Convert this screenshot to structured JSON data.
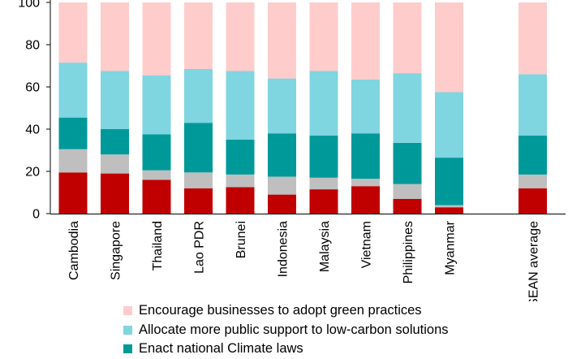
{
  "chart_data": {
    "type": "bar",
    "stacked": true,
    "orientation": "vertical",
    "categories": [
      "Cambodia",
      "Singapore",
      "Thailand",
      "Lao PDR",
      "Brunei",
      "Indonesia",
      "Malaysia",
      "Vietnam",
      "Philippines",
      "Myanmar",
      "ASEAN average"
    ],
    "category_gap_before": "ASEAN average",
    "ylim": [
      0,
      100
    ],
    "yticks": [
      0,
      20,
      40,
      60,
      80,
      100
    ],
    "xlabel": "",
    "ylabel": "",
    "title": "",
    "grid": false,
    "legend_placement": "bottom",
    "series_bottom_to_top": [
      {
        "key": "s1",
        "color": "#c00000",
        "values": [
          19.5,
          19,
          16,
          12,
          12.5,
          9,
          11.5,
          13,
          7,
          3,
          12
        ]
      },
      {
        "key": "s2",
        "color": "#bfbfbf",
        "values": [
          11,
          9,
          4.5,
          7.5,
          6,
          8.5,
          5.5,
          3.5,
          7,
          1,
          6.5
        ]
      },
      {
        "key": "s3",
        "color": "#009999",
        "values": [
          15,
          12,
          17,
          23.5,
          16.5,
          20.5,
          20,
          21.5,
          19.5,
          22.5,
          18.5
        ]
      },
      {
        "key": "s4",
        "color": "#7fd5e0",
        "name": "Allocate more public support to low-carbon solutions",
        "values": [
          26,
          27.5,
          28,
          25.5,
          32.5,
          26,
          30.5,
          25.5,
          33,
          31,
          29
        ]
      },
      {
        "key": "s5",
        "color": "#ffcccc",
        "name": "Encourage businesses to adopt green practices",
        "values": [
          28.5,
          32.5,
          34.5,
          31.5,
          32.5,
          36,
          32.5,
          36.5,
          33.5,
          42.5,
          34
        ]
      }
    ],
    "legend": [
      {
        "label": "Encourage businesses to adopt green practices",
        "color": "#ffcccc"
      },
      {
        "label": "Allocate more public support to low-carbon solutions",
        "color": "#7fd5e0"
      },
      {
        "label": "Enact national Climate laws",
        "color": "#009999"
      }
    ]
  }
}
